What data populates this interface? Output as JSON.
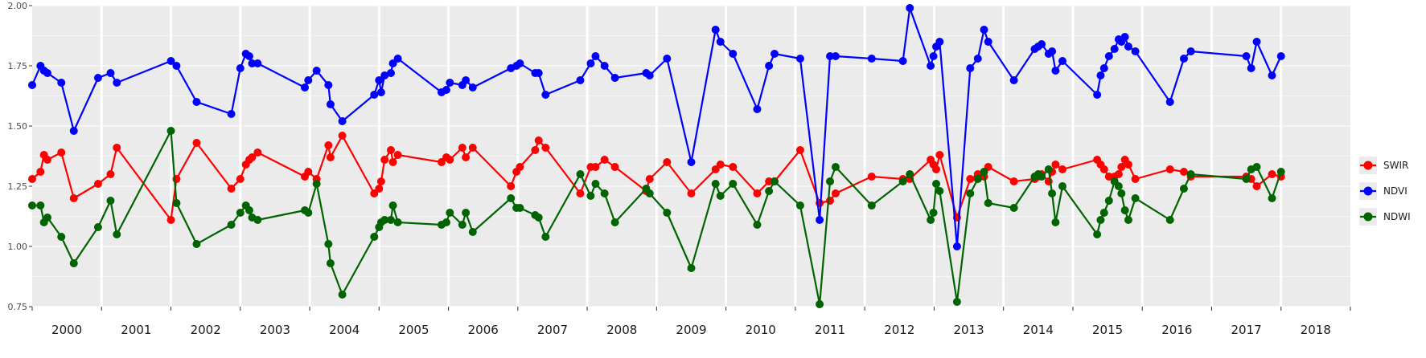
{
  "chart_data": {
    "type": "line",
    "title": "",
    "xlabel": "",
    "ylabel": "",
    "ylim": [
      0.75,
      2.0
    ],
    "y_ticks": [
      "0.75",
      "1.00",
      "1.25",
      "1.50",
      "1.75",
      "2.00"
    ],
    "x_range": [
      2000.0,
      2019.0
    ],
    "grid": true,
    "legend_position": "right",
    "facets": [
      "2000",
      "2001",
      "2002",
      "2003",
      "2004",
      "2005",
      "2006",
      "2007",
      "2008",
      "2009",
      "2010",
      "2011",
      "2012",
      "2013",
      "2014",
      "2015",
      "2016",
      "2017",
      "2018"
    ],
    "series": [
      {
        "name": "SWIR",
        "color": "#ff0000",
        "points": [
          [
            2000.0,
            1.28
          ],
          [
            2000.12,
            1.31
          ],
          [
            2000.17,
            1.38
          ],
          [
            2000.22,
            1.36
          ],
          [
            2000.42,
            1.39
          ],
          [
            2000.6,
            1.2
          ],
          [
            2000.95,
            1.26
          ],
          [
            2001.13,
            1.3
          ],
          [
            2001.22,
            1.41
          ],
          [
            2002.0,
            1.11
          ],
          [
            2002.08,
            1.28
          ],
          [
            2002.37,
            1.43
          ],
          [
            2002.87,
            1.24
          ],
          [
            2003.0,
            1.28
          ],
          [
            2003.08,
            1.34
          ],
          [
            2003.13,
            1.36
          ],
          [
            2003.17,
            1.37
          ],
          [
            2003.25,
            1.39
          ],
          [
            2003.93,
            1.29
          ],
          [
            2003.98,
            1.31
          ],
          [
            2004.1,
            1.28
          ],
          [
            2004.27,
            1.42
          ],
          [
            2004.3,
            1.37
          ],
          [
            2004.47,
            1.46
          ],
          [
            2004.93,
            1.22
          ],
          [
            2005.0,
            1.24
          ],
          [
            2005.03,
            1.27
          ],
          [
            2005.08,
            1.36
          ],
          [
            2005.17,
            1.4
          ],
          [
            2005.2,
            1.35
          ],
          [
            2005.27,
            1.38
          ],
          [
            2005.9,
            1.35
          ],
          [
            2005.97,
            1.37
          ],
          [
            2006.02,
            1.36
          ],
          [
            2006.2,
            1.41
          ],
          [
            2006.25,
            1.37
          ],
          [
            2006.35,
            1.41
          ],
          [
            2006.9,
            1.25
          ],
          [
            2006.98,
            1.31
          ],
          [
            2007.03,
            1.33
          ],
          [
            2007.25,
            1.4
          ],
          [
            2007.3,
            1.44
          ],
          [
            2007.4,
            1.41
          ],
          [
            2007.9,
            1.22
          ],
          [
            2008.05,
            1.33
          ],
          [
            2008.12,
            1.33
          ],
          [
            2008.25,
            1.36
          ],
          [
            2008.4,
            1.33
          ],
          [
            2008.85,
            1.23
          ],
          [
            2008.9,
            1.28
          ],
          [
            2009.15,
            1.35
          ],
          [
            2009.5,
            1.22
          ],
          [
            2009.85,
            1.32
          ],
          [
            2009.92,
            1.34
          ],
          [
            2010.1,
            1.33
          ],
          [
            2010.45,
            1.22
          ],
          [
            2010.62,
            1.27
          ],
          [
            2010.7,
            1.27
          ],
          [
            2011.07,
            1.4
          ],
          [
            2011.35,
            1.18
          ],
          [
            2011.5,
            1.19
          ],
          [
            2011.58,
            1.22
          ],
          [
            2012.1,
            1.29
          ],
          [
            2012.55,
            1.28
          ],
          [
            2012.65,
            1.28
          ],
          [
            2012.95,
            1.36
          ],
          [
            2012.99,
            1.34
          ],
          [
            2013.03,
            1.32
          ],
          [
            2013.08,
            1.38
          ],
          [
            2013.33,
            1.12
          ],
          [
            2013.52,
            1.28
          ],
          [
            2013.63,
            1.3
          ],
          [
            2013.72,
            1.29
          ],
          [
            2013.78,
            1.33
          ],
          [
            2014.15,
            1.27
          ],
          [
            2014.45,
            1.28
          ],
          [
            2014.5,
            1.29
          ],
          [
            2014.55,
            1.3
          ],
          [
            2014.65,
            1.27
          ],
          [
            2014.7,
            1.31
          ],
          [
            2014.75,
            1.34
          ],
          [
            2014.85,
            1.32
          ],
          [
            2015.35,
            1.36
          ],
          [
            2015.4,
            1.34
          ],
          [
            2015.45,
            1.32
          ],
          [
            2015.52,
            1.29
          ],
          [
            2015.6,
            1.29
          ],
          [
            2015.66,
            1.3
          ],
          [
            2015.7,
            1.33
          ],
          [
            2015.75,
            1.36
          ],
          [
            2015.8,
            1.34
          ],
          [
            2015.9,
            1.28
          ],
          [
            2016.4,
            1.32
          ],
          [
            2016.6,
            1.31
          ],
          [
            2016.7,
            1.29
          ],
          [
            2017.5,
            1.29
          ],
          [
            2017.57,
            1.28
          ],
          [
            2017.65,
            1.25
          ],
          [
            2017.87,
            1.3
          ],
          [
            2018.0,
            1.29
          ]
        ]
      },
      {
        "name": "NDVI",
        "color": "#0000ff",
        "points": [
          [
            2000.0,
            1.67
          ],
          [
            2000.12,
            1.75
          ],
          [
            2000.17,
            1.73
          ],
          [
            2000.22,
            1.72
          ],
          [
            2000.42,
            1.68
          ],
          [
            2000.6,
            1.48
          ],
          [
            2000.95,
            1.7
          ],
          [
            2001.13,
            1.72
          ],
          [
            2001.22,
            1.68
          ],
          [
            2002.0,
            1.77
          ],
          [
            2002.08,
            1.75
          ],
          [
            2002.37,
            1.6
          ],
          [
            2002.87,
            1.55
          ],
          [
            2003.0,
            1.74
          ],
          [
            2003.08,
            1.8
          ],
          [
            2003.13,
            1.79
          ],
          [
            2003.17,
            1.76
          ],
          [
            2003.25,
            1.76
          ],
          [
            2003.93,
            1.66
          ],
          [
            2003.98,
            1.69
          ],
          [
            2004.1,
            1.73
          ],
          [
            2004.27,
            1.67
          ],
          [
            2004.3,
            1.59
          ],
          [
            2004.47,
            1.52
          ],
          [
            2004.93,
            1.63
          ],
          [
            2005.0,
            1.69
          ],
          [
            2005.03,
            1.64
          ],
          [
            2005.08,
            1.71
          ],
          [
            2005.17,
            1.72
          ],
          [
            2005.2,
            1.76
          ],
          [
            2005.27,
            1.78
          ],
          [
            2005.9,
            1.64
          ],
          [
            2005.97,
            1.65
          ],
          [
            2006.02,
            1.68
          ],
          [
            2006.2,
            1.67
          ],
          [
            2006.25,
            1.69
          ],
          [
            2006.35,
            1.66
          ],
          [
            2006.9,
            1.74
          ],
          [
            2006.98,
            1.75
          ],
          [
            2007.03,
            1.76
          ],
          [
            2007.25,
            1.72
          ],
          [
            2007.3,
            1.72
          ],
          [
            2007.4,
            1.63
          ],
          [
            2007.9,
            1.69
          ],
          [
            2008.05,
            1.76
          ],
          [
            2008.12,
            1.79
          ],
          [
            2008.25,
            1.75
          ],
          [
            2008.4,
            1.7
          ],
          [
            2008.85,
            1.72
          ],
          [
            2008.9,
            1.71
          ],
          [
            2009.15,
            1.78
          ],
          [
            2009.5,
            1.35
          ],
          [
            2009.85,
            1.9
          ],
          [
            2009.92,
            1.85
          ],
          [
            2010.1,
            1.8
          ],
          [
            2010.45,
            1.57
          ],
          [
            2010.62,
            1.75
          ],
          [
            2010.7,
            1.8
          ],
          [
            2011.07,
            1.78
          ],
          [
            2011.35,
            1.11
          ],
          [
            2011.5,
            1.79
          ],
          [
            2011.58,
            1.79
          ],
          [
            2012.1,
            1.78
          ],
          [
            2012.55,
            1.77
          ],
          [
            2012.65,
            1.99
          ],
          [
            2012.95,
            1.75
          ],
          [
            2012.99,
            1.79
          ],
          [
            2013.03,
            1.83
          ],
          [
            2013.08,
            1.85
          ],
          [
            2013.33,
            1.0
          ],
          [
            2013.52,
            1.74
          ],
          [
            2013.63,
            1.78
          ],
          [
            2013.72,
            1.9
          ],
          [
            2013.78,
            1.85
          ],
          [
            2014.15,
            1.69
          ],
          [
            2014.45,
            1.82
          ],
          [
            2014.5,
            1.83
          ],
          [
            2014.55,
            1.84
          ],
          [
            2014.65,
            1.8
          ],
          [
            2014.7,
            1.81
          ],
          [
            2014.75,
            1.73
          ],
          [
            2014.85,
            1.77
          ],
          [
            2015.35,
            1.63
          ],
          [
            2015.4,
            1.71
          ],
          [
            2015.45,
            1.74
          ],
          [
            2015.52,
            1.79
          ],
          [
            2015.6,
            1.82
          ],
          [
            2015.66,
            1.86
          ],
          [
            2015.7,
            1.85
          ],
          [
            2015.75,
            1.87
          ],
          [
            2015.8,
            1.83
          ],
          [
            2015.9,
            1.81
          ],
          [
            2016.4,
            1.6
          ],
          [
            2016.6,
            1.78
          ],
          [
            2016.7,
            1.81
          ],
          [
            2017.5,
            1.79
          ],
          [
            2017.57,
            1.74
          ],
          [
            2017.65,
            1.85
          ],
          [
            2017.87,
            1.71
          ],
          [
            2018.0,
            1.79
          ]
        ]
      },
      {
        "name": "NDWI",
        "color": "#006400",
        "points": [
          [
            2000.0,
            1.17
          ],
          [
            2000.12,
            1.17
          ],
          [
            2000.17,
            1.1
          ],
          [
            2000.22,
            1.12
          ],
          [
            2000.42,
            1.04
          ],
          [
            2000.6,
            0.93
          ],
          [
            2000.95,
            1.08
          ],
          [
            2001.13,
            1.19
          ],
          [
            2001.22,
            1.05
          ],
          [
            2002.0,
            1.48
          ],
          [
            2002.08,
            1.18
          ],
          [
            2002.37,
            1.01
          ],
          [
            2002.87,
            1.09
          ],
          [
            2003.0,
            1.14
          ],
          [
            2003.08,
            1.17
          ],
          [
            2003.13,
            1.15
          ],
          [
            2003.17,
            1.12
          ],
          [
            2003.25,
            1.11
          ],
          [
            2003.93,
            1.15
          ],
          [
            2003.98,
            1.14
          ],
          [
            2004.1,
            1.26
          ],
          [
            2004.27,
            1.01
          ],
          [
            2004.3,
            0.93
          ],
          [
            2004.47,
            0.8
          ],
          [
            2004.93,
            1.04
          ],
          [
            2005.0,
            1.08
          ],
          [
            2005.03,
            1.1
          ],
          [
            2005.08,
            1.11
          ],
          [
            2005.17,
            1.11
          ],
          [
            2005.2,
            1.17
          ],
          [
            2005.27,
            1.1
          ],
          [
            2005.9,
            1.09
          ],
          [
            2005.97,
            1.1
          ],
          [
            2006.02,
            1.14
          ],
          [
            2006.2,
            1.09
          ],
          [
            2006.25,
            1.14
          ],
          [
            2006.35,
            1.06
          ],
          [
            2006.9,
            1.2
          ],
          [
            2006.98,
            1.16
          ],
          [
            2007.03,
            1.16
          ],
          [
            2007.25,
            1.13
          ],
          [
            2007.3,
            1.12
          ],
          [
            2007.4,
            1.04
          ],
          [
            2007.9,
            1.3
          ],
          [
            2008.05,
            1.21
          ],
          [
            2008.12,
            1.26
          ],
          [
            2008.25,
            1.22
          ],
          [
            2008.4,
            1.1
          ],
          [
            2008.85,
            1.24
          ],
          [
            2008.9,
            1.22
          ],
          [
            2009.15,
            1.14
          ],
          [
            2009.5,
            0.91
          ],
          [
            2009.85,
            1.26
          ],
          [
            2009.92,
            1.21
          ],
          [
            2010.1,
            1.26
          ],
          [
            2010.45,
            1.09
          ],
          [
            2010.62,
            1.23
          ],
          [
            2010.7,
            1.27
          ],
          [
            2011.07,
            1.17
          ],
          [
            2011.35,
            0.76
          ],
          [
            2011.5,
            1.27
          ],
          [
            2011.58,
            1.33
          ],
          [
            2012.1,
            1.17
          ],
          [
            2012.55,
            1.27
          ],
          [
            2012.65,
            1.3
          ],
          [
            2012.95,
            1.11
          ],
          [
            2012.99,
            1.14
          ],
          [
            2013.03,
            1.26
          ],
          [
            2013.08,
            1.23
          ],
          [
            2013.33,
            0.77
          ],
          [
            2013.52,
            1.22
          ],
          [
            2013.63,
            1.28
          ],
          [
            2013.72,
            1.31
          ],
          [
            2013.78,
            1.18
          ],
          [
            2014.15,
            1.16
          ],
          [
            2014.45,
            1.29
          ],
          [
            2014.5,
            1.3
          ],
          [
            2014.55,
            1.29
          ],
          [
            2014.65,
            1.32
          ],
          [
            2014.7,
            1.22
          ],
          [
            2014.75,
            1.1
          ],
          [
            2014.85,
            1.25
          ],
          [
            2015.35,
            1.05
          ],
          [
            2015.4,
            1.11
          ],
          [
            2015.45,
            1.14
          ],
          [
            2015.52,
            1.19
          ],
          [
            2015.6,
            1.27
          ],
          [
            2015.66,
            1.25
          ],
          [
            2015.7,
            1.22
          ],
          [
            2015.75,
            1.15
          ],
          [
            2015.8,
            1.11
          ],
          [
            2015.9,
            1.2
          ],
          [
            2016.4,
            1.11
          ],
          [
            2016.6,
            1.24
          ],
          [
            2016.7,
            1.3
          ],
          [
            2017.5,
            1.28
          ],
          [
            2017.57,
            1.32
          ],
          [
            2017.65,
            1.33
          ],
          [
            2017.87,
            1.2
          ],
          [
            2018.0,
            1.31
          ]
        ]
      }
    ]
  }
}
